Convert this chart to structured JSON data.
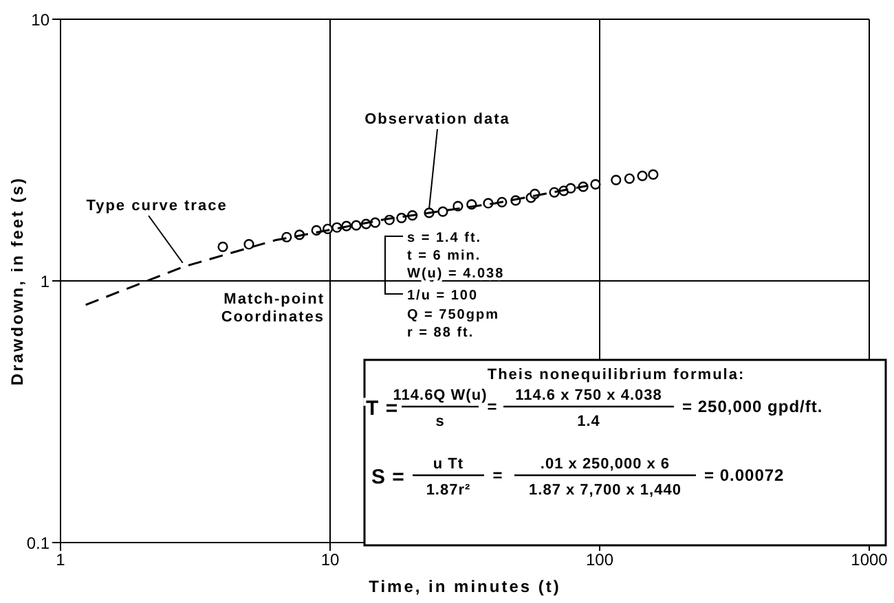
{
  "chart_data": {
    "type": "scatter",
    "xlabel": "Time, in minutes (t)",
    "ylabel": "Drawdown, in feet (s)",
    "log": "xy",
    "xlim": [
      1,
      1000
    ],
    "xticks": [
      1,
      10,
      100,
      1000
    ],
    "ylim": [
      0.1,
      10
    ],
    "yticks": [
      0.1,
      1,
      10
    ],
    "grid": true,
    "legend": false,
    "series": [
      {
        "type": "scatter",
        "color": "#000000",
        "marker": "circle",
        "x": [
          4.0,
          5.0,
          6.9,
          7.7,
          8.9,
          9.8,
          10.6,
          11.5,
          12.5,
          13.6,
          14.7,
          16.6,
          18.4,
          20.2,
          23.3,
          26.2,
          29.8,
          33.5,
          38.6,
          43.4,
          48.8,
          55.6,
          57.5,
          67.9,
          73.6,
          78.1,
          86.9,
          96.5,
          115,
          129,
          144,
          158
        ],
        "values": [
          1.35,
          1.38,
          1.47,
          1.5,
          1.56,
          1.58,
          1.6,
          1.62,
          1.63,
          1.65,
          1.67,
          1.71,
          1.74,
          1.78,
          1.82,
          1.84,
          1.93,
          1.96,
          1.98,
          2.0,
          2.03,
          2.08,
          2.15,
          2.18,
          2.21,
          2.26,
          2.29,
          2.34,
          2.43,
          2.46,
          2.52,
          2.55
        ]
      },
      {
        "type": "line",
        "color": "#000000",
        "marker": "none",
        "line_style": "dashed",
        "x": [
          1.24,
          2.84,
          6.25,
          16,
          41,
          90
        ],
        "values": [
          0.81,
          1.13,
          1.43,
          1.72,
          1.98,
          2.31
        ]
      }
    ],
    "annotations": [
      {
        "text": "Observation data",
        "x": 23.3,
        "y": 1.82
      },
      {
        "text": "Type curve trace",
        "x": 2.84,
        "y": 1.13
      },
      "Match-point Coordinates",
      "s = 1.4 ft.",
      "t = 6 min.",
      "W(u) = 4.038",
      "1/u = 100",
      "Q = 750gpm",
      "r = 88 ft.",
      "Theis nonequilibrium formula:",
      "T =",
      "114.6Q W(u)",
      "s",
      "=",
      "114.6 x 750 x 4.038",
      "1.4",
      "= 250,000 gpd/ft.",
      "S =",
      "u Tt",
      "1.87r²",
      "=",
      ".01 x 250,000 x 6",
      "1.87 x 7,700 x 1,440",
      "= 0.00072"
    ]
  }
}
